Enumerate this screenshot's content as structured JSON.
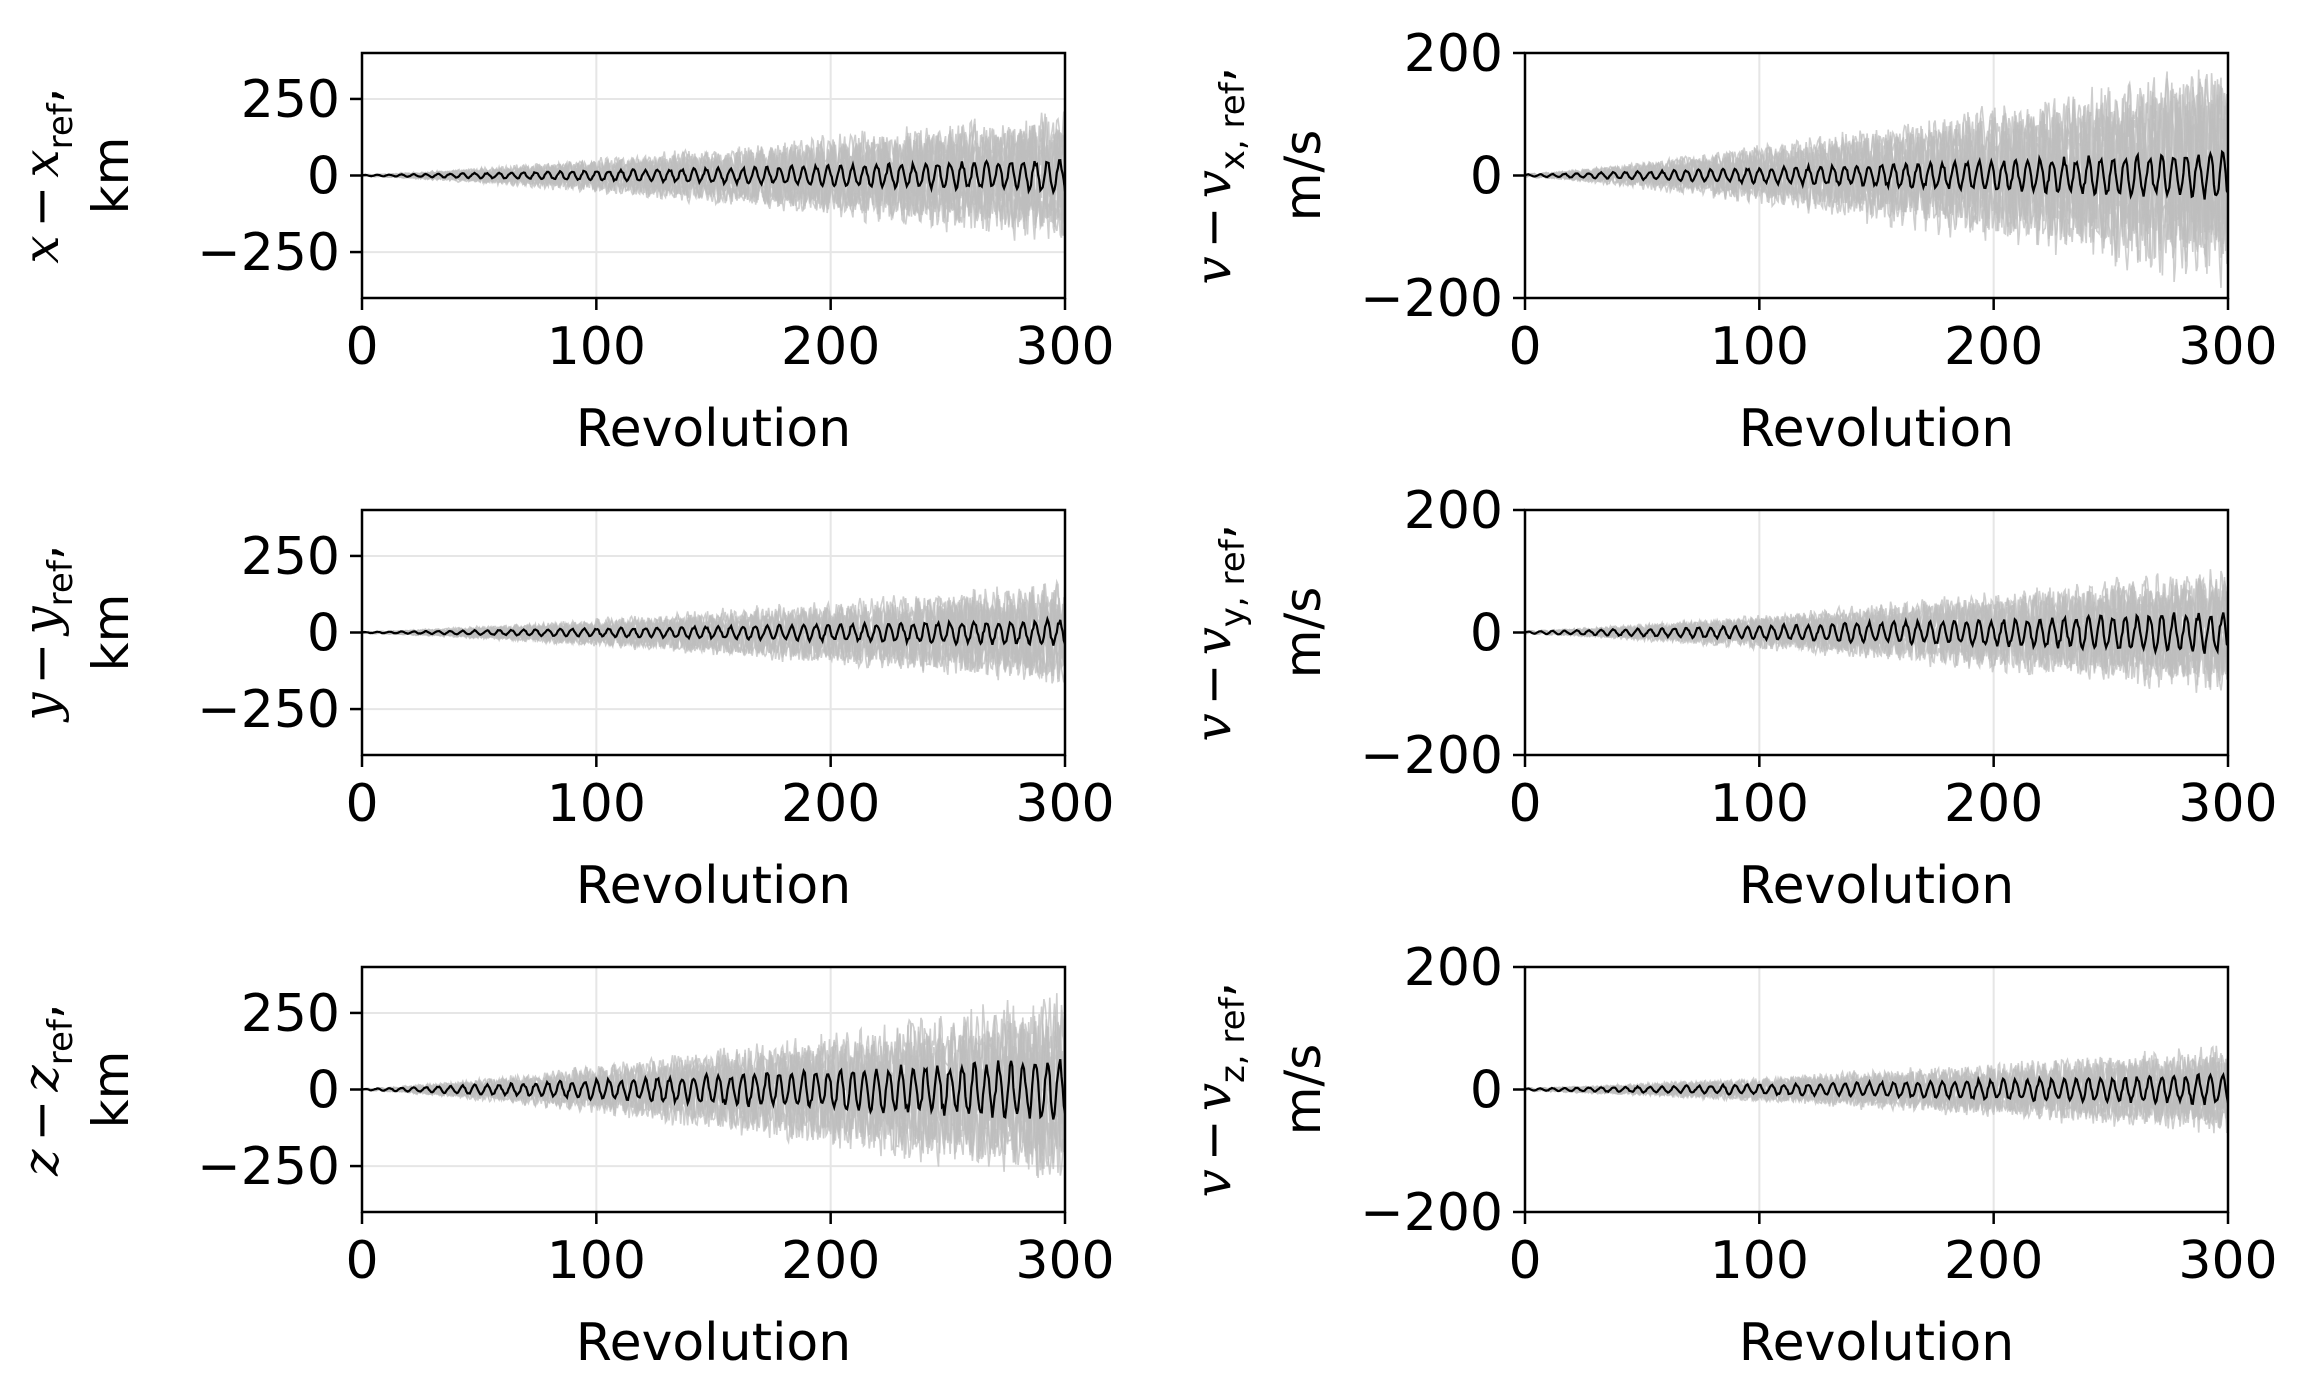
{
  "chart_data": [
    {
      "type": "line",
      "panel": "x",
      "ylabel_var": "x",
      "ylabel_minus": "−",
      "ylabel_sub": "ref",
      "ylabel_comma": ",",
      "ylabel_unit": "km",
      "xlabel": "Revolution",
      "xlim": [
        0,
        300
      ],
      "ylim": [
        -400,
        400
      ],
      "xticks": [
        "0",
        "100",
        "200",
        "300"
      ],
      "yticks": [
        "250",
        "0",
        "−250"
      ],
      "ytick_values": [
        250,
        0,
        -250
      ],
      "grid": true,
      "reference_amplitude": 55,
      "ensemble_amplitude": 230,
      "ensemble_color": "#bdbdbd",
      "reference_color": "#000000"
    },
    {
      "type": "line",
      "panel": "vx",
      "ylabel_var": "v",
      "ylabel_minus": "−",
      "ylabel_sub_var": "x",
      "ylabel_sub": "x, ref",
      "ylabel_comma": ",",
      "ylabel_unit": "m/s",
      "xlabel": "Revolution",
      "xlim": [
        0,
        300
      ],
      "ylim": [
        -200,
        200
      ],
      "xticks": [
        "0",
        "100",
        "200",
        "300"
      ],
      "yticks": [
        "200",
        "0",
        "−200"
      ],
      "ytick_values": [
        200,
        0,
        -200
      ],
      "grid": true,
      "reference_amplitude": 40,
      "ensemble_amplitude": 190,
      "ensemble_color": "#bdbdbd",
      "reference_color": "#000000"
    },
    {
      "type": "line",
      "panel": "y",
      "ylabel_var": "y",
      "ylabel_minus": "−",
      "ylabel_sub": "ref",
      "ylabel_comma": ",",
      "ylabel_unit": "km",
      "xlabel": "Revolution",
      "xlim": [
        0,
        300
      ],
      "ylim": [
        -400,
        400
      ],
      "xticks": [
        "0",
        "100",
        "200",
        "300"
      ],
      "yticks": [
        "250",
        "0",
        "−250"
      ],
      "ytick_values": [
        250,
        0,
        -250
      ],
      "grid": true,
      "reference_amplitude": 45,
      "ensemble_amplitude": 180,
      "ensemble_color": "#bdbdbd",
      "reference_color": "#000000"
    },
    {
      "type": "line",
      "panel": "vy",
      "ylabel_var": "v",
      "ylabel_minus": "−",
      "ylabel_sub": "y, ref",
      "ylabel_comma": ",",
      "ylabel_unit": "m/s",
      "xlabel": "Revolution",
      "xlim": [
        0,
        300
      ],
      "ylim": [
        -200,
        200
      ],
      "xticks": [
        "0",
        "100",
        "200",
        "300"
      ],
      "yticks": [
        "200",
        "0",
        "−200"
      ],
      "ytick_values": [
        200,
        0,
        -200
      ],
      "grid": true,
      "reference_amplitude": 35,
      "ensemble_amplitude": 110,
      "ensemble_color": "#bdbdbd",
      "reference_color": "#000000"
    },
    {
      "type": "line",
      "panel": "z",
      "ylabel_var": "z",
      "ylabel_minus": "−",
      "ylabel_sub": "ref",
      "ylabel_comma": ",",
      "ylabel_unit": "km",
      "xlabel": "Revolution",
      "xlim": [
        0,
        300
      ],
      "ylim": [
        -400,
        400
      ],
      "xticks": [
        "0",
        "100",
        "200",
        "300"
      ],
      "yticks": [
        "250",
        "0",
        "−250"
      ],
      "ytick_values": [
        250,
        0,
        -250
      ],
      "grid": true,
      "reference_amplitude": 110,
      "ensemble_amplitude": 320,
      "ensemble_color": "#bdbdbd",
      "reference_color": "#000000"
    },
    {
      "type": "line",
      "panel": "vz",
      "ylabel_var": "v",
      "ylabel_minus": "−",
      "ylabel_sub": "z, ref",
      "ylabel_comma": ",",
      "ylabel_unit": "m/s",
      "xlabel": "Revolution",
      "xlim": [
        0,
        300
      ],
      "ylim": [
        -200,
        200
      ],
      "xticks": [
        "0",
        "100",
        "200",
        "300"
      ],
      "yticks": [
        "200",
        "0",
        "−200"
      ],
      "ytick_values": [
        200,
        0,
        -200
      ],
      "grid": true,
      "reference_amplitude": 25,
      "ensemble_amplitude": 75,
      "ensemble_color": "#bdbdbd",
      "reference_color": "#000000"
    }
  ]
}
